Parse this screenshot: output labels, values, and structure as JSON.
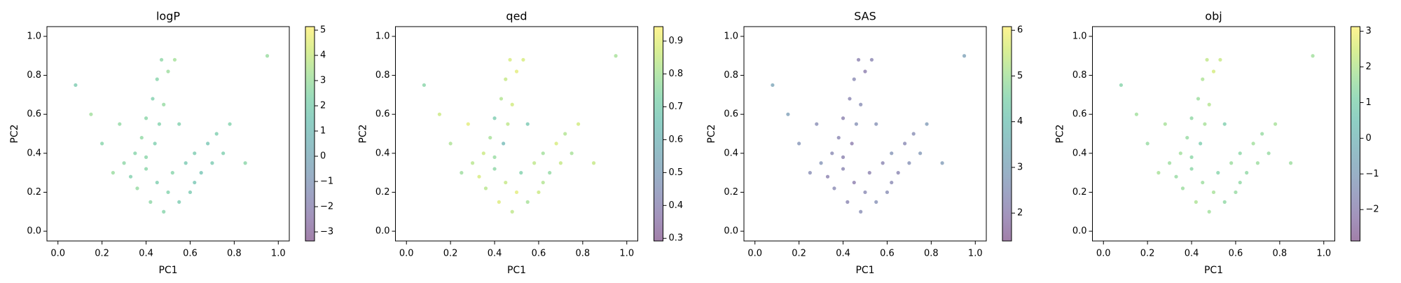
{
  "chart_data": [
    {
      "type": "scatter",
      "title": "logP",
      "x_label": "PC1",
      "y_label": "PC2",
      "xlim": [
        -0.05,
        1.05
      ],
      "ylim": [
        -0.05,
        1.05
      ],
      "xticks": [
        {
          "value": 0,
          "label": "0.0"
        },
        0.2,
        0.4,
        0.6,
        0.8,
        {
          "value": 1,
          "label": "1.0"
        }
      ],
      "yticks": [
        {
          "value": 0,
          "label": "0.0"
        },
        0.2,
        0.4,
        0.6,
        0.8,
        {
          "value": 1,
          "label": "1.0"
        }
      ],
      "clim": [
        -3.36,
        5.14
      ],
      "cticks": [
        {
          "value": -3,
          "label": "−3"
        },
        {
          "value": -2,
          "label": "−2"
        },
        {
          "value": -1,
          "label": "−1"
        },
        0,
        1,
        2,
        3,
        4,
        5
      ],
      "colormap": [
        "#440154",
        "#482878",
        "#3e4989",
        "#31688e",
        "#26828e",
        "#1f9e89",
        "#35b779",
        "#6ece58",
        "#b5de2b",
        "#fde725"
      ],
      "alpha": 0.5,
      "x": [
        0.47,
        0.45,
        0.5,
        0.43,
        0.48,
        0.4,
        0.46,
        0.38,
        0.44,
        0.35,
        0.3,
        0.25,
        0.33,
        0.4,
        0.45,
        0.5,
        0.55,
        0.6,
        0.52,
        0.58,
        0.62,
        0.68,
        0.72,
        0.65,
        0.7,
        0.75,
        0.78,
        0.42,
        0.36,
        0.2,
        0.15,
        0.08,
        0.28,
        0.55,
        0.85,
        0.95,
        0.53,
        0.48,
        0.62,
        0.4
      ],
      "y": [
        0.88,
        0.78,
        0.82,
        0.68,
        0.65,
        0.58,
        0.55,
        0.48,
        0.45,
        0.4,
        0.35,
        0.3,
        0.28,
        0.32,
        0.25,
        0.2,
        0.15,
        0.2,
        0.3,
        0.35,
        0.4,
        0.45,
        0.5,
        0.3,
        0.35,
        0.4,
        0.55,
        0.15,
        0.22,
        0.45,
        0.6,
        0.75,
        0.55,
        0.55,
        0.35,
        0.9,
        0.88,
        0.1,
        0.25,
        0.38
      ],
      "c": [
        2.6,
        2.4,
        3.0,
        2.2,
        2.8,
        2.5,
        2.3,
        2.7,
        2.1,
        2.4,
        2.6,
        2.9,
        2.2,
        2.5,
        2.0,
        2.3,
        1.9,
        1.8,
        2.4,
        1.7,
        1.9,
        1.6,
        2.0,
        1.5,
        1.8,
        2.1,
        2.3,
        2.6,
        2.8,
        2.4,
        3.1,
        1.9,
        2.7,
        2.2,
        2.5,
        2.9,
        3.2,
        2.4,
        1.6,
        2.5
      ]
    },
    {
      "type": "scatter",
      "title": "qed",
      "x_label": "PC1",
      "y_label": "PC2",
      "xlim": [
        -0.05,
        1.05
      ],
      "ylim": [
        -0.05,
        1.05
      ],
      "xticks": [
        {
          "value": 0,
          "label": "0.0"
        },
        0.2,
        0.4,
        0.6,
        0.8,
        {
          "value": 1,
          "label": "1.0"
        }
      ],
      "yticks": [
        {
          "value": 0,
          "label": "0.0"
        },
        0.2,
        0.4,
        0.6,
        0.8,
        {
          "value": 1,
          "label": "1.0"
        }
      ],
      "clim": [
        0.292,
        0.944
      ],
      "cticks": [
        0.3,
        0.4,
        0.5,
        0.6,
        0.7,
        0.8,
        0.9
      ],
      "colormap": [
        "#440154",
        "#482878",
        "#3e4989",
        "#31688e",
        "#26828e",
        "#1f9e89",
        "#35b779",
        "#6ece58",
        "#b5de2b",
        "#fde725"
      ],
      "alpha": 0.5,
      "x": [
        0.47,
        0.45,
        0.5,
        0.43,
        0.48,
        0.4,
        0.46,
        0.38,
        0.44,
        0.35,
        0.3,
        0.25,
        0.33,
        0.4,
        0.45,
        0.5,
        0.55,
        0.6,
        0.52,
        0.58,
        0.62,
        0.68,
        0.72,
        0.65,
        0.7,
        0.75,
        0.78,
        0.42,
        0.36,
        0.2,
        0.15,
        0.08,
        0.28,
        0.55,
        0.85,
        0.95,
        0.53,
        0.48,
        0.62,
        0.4
      ],
      "y": [
        0.88,
        0.78,
        0.82,
        0.68,
        0.65,
        0.58,
        0.55,
        0.48,
        0.45,
        0.4,
        0.35,
        0.3,
        0.28,
        0.32,
        0.25,
        0.2,
        0.15,
        0.2,
        0.3,
        0.35,
        0.4,
        0.45,
        0.5,
        0.3,
        0.35,
        0.4,
        0.55,
        0.15,
        0.22,
        0.45,
        0.6,
        0.75,
        0.55,
        0.55,
        0.35,
        0.9,
        0.88,
        0.1,
        0.25,
        0.38
      ],
      "c": [
        0.88,
        0.85,
        0.9,
        0.82,
        0.87,
        0.7,
        0.84,
        0.8,
        0.62,
        0.86,
        0.83,
        0.78,
        0.88,
        0.75,
        0.85,
        0.9,
        0.8,
        0.86,
        0.72,
        0.84,
        0.79,
        0.88,
        0.82,
        0.76,
        0.85,
        0.8,
        0.87,
        0.89,
        0.83,
        0.81,
        0.86,
        0.74,
        0.9,
        0.68,
        0.85,
        0.8,
        0.88,
        0.84,
        0.82,
        0.77
      ]
    },
    {
      "type": "scatter",
      "title": "SAS",
      "x_label": "PC1",
      "y_label": "PC2",
      "xlim": [
        -0.05,
        1.05
      ],
      "ylim": [
        -0.05,
        1.05
      ],
      "xticks": [
        {
          "value": 0,
          "label": "0.0"
        },
        0.2,
        0.4,
        0.6,
        0.8,
        {
          "value": 1,
          "label": "1.0"
        }
      ],
      "yticks": [
        {
          "value": 0,
          "label": "0.0"
        },
        0.2,
        0.4,
        0.6,
        0.8,
        {
          "value": 1,
          "label": "1.0"
        }
      ],
      "clim": [
        1.39,
        6.08
      ],
      "cticks": [
        2,
        3,
        4,
        5,
        6
      ],
      "colormap": [
        "#440154",
        "#482878",
        "#3e4989",
        "#31688e",
        "#26828e",
        "#1f9e89",
        "#35b779",
        "#6ece58",
        "#b5de2b",
        "#fde725"
      ],
      "alpha": 0.5,
      "x": [
        0.47,
        0.45,
        0.5,
        0.43,
        0.48,
        0.4,
        0.46,
        0.38,
        0.44,
        0.35,
        0.3,
        0.25,
        0.33,
        0.4,
        0.45,
        0.5,
        0.55,
        0.6,
        0.52,
        0.58,
        0.62,
        0.68,
        0.72,
        0.65,
        0.7,
        0.75,
        0.78,
        0.42,
        0.36,
        0.2,
        0.15,
        0.08,
        0.28,
        0.55,
        0.85,
        0.95,
        0.53,
        0.48,
        0.62,
        0.4
      ],
      "y": [
        0.88,
        0.78,
        0.82,
        0.68,
        0.65,
        0.58,
        0.55,
        0.48,
        0.45,
        0.4,
        0.35,
        0.3,
        0.28,
        0.32,
        0.25,
        0.2,
        0.15,
        0.2,
        0.3,
        0.35,
        0.4,
        0.45,
        0.5,
        0.3,
        0.35,
        0.4,
        0.55,
        0.15,
        0.22,
        0.45,
        0.6,
        0.75,
        0.55,
        0.55,
        0.35,
        0.9,
        0.88,
        0.1,
        0.25,
        0.38
      ],
      "c": [
        2.1,
        2.3,
        2.0,
        2.2,
        2.4,
        2.1,
        2.5,
        2.2,
        2.0,
        2.3,
        2.6,
        2.4,
        2.1,
        2.2,
        2.0,
        2.3,
        2.5,
        2.4,
        2.1,
        2.2,
        2.6,
        2.3,
        2.4,
        2.2,
        2.5,
        2.7,
        2.8,
        2.2,
        2.3,
        2.6,
        2.9,
        3.1,
        2.4,
        2.5,
        2.8,
        3.0,
        2.2,
        2.4,
        2.3,
        2.1
      ]
    },
    {
      "type": "scatter",
      "title": "obj",
      "x_label": "PC1",
      "y_label": "PC2",
      "xlim": [
        -0.05,
        1.05
      ],
      "ylim": [
        -0.05,
        1.05
      ],
      "xticks": [
        {
          "value": 0,
          "label": "0.0"
        },
        0.2,
        0.4,
        0.6,
        0.8,
        {
          "value": 1,
          "label": "1.0"
        }
      ],
      "yticks": [
        {
          "value": 0,
          "label": "0.0"
        },
        0.2,
        0.4,
        0.6,
        0.8,
        {
          "value": 1,
          "label": "1.0"
        }
      ],
      "clim": [
        -2.88,
        3.13
      ],
      "cticks": [
        {
          "value": -2,
          "label": "−2"
        },
        {
          "value": -1,
          "label": "−1"
        },
        0,
        1,
        2,
        3
      ],
      "colormap": [
        "#440154",
        "#482878",
        "#3e4989",
        "#31688e",
        "#26828e",
        "#1f9e89",
        "#35b779",
        "#6ece58",
        "#b5de2b",
        "#fde725"
      ],
      "alpha": 0.5,
      "x": [
        0.47,
        0.45,
        0.5,
        0.43,
        0.48,
        0.4,
        0.46,
        0.38,
        0.44,
        0.35,
        0.3,
        0.25,
        0.33,
        0.4,
        0.45,
        0.5,
        0.55,
        0.6,
        0.52,
        0.58,
        0.62,
        0.68,
        0.72,
        0.65,
        0.7,
        0.75,
        0.78,
        0.42,
        0.36,
        0.2,
        0.15,
        0.08,
        0.28,
        0.55,
        0.85,
        0.95,
        0.53,
        0.48,
        0.62,
        0.4
      ],
      "y": [
        0.88,
        0.78,
        0.82,
        0.68,
        0.65,
        0.58,
        0.55,
        0.48,
        0.45,
        0.4,
        0.35,
        0.3,
        0.28,
        0.32,
        0.25,
        0.2,
        0.15,
        0.2,
        0.3,
        0.35,
        0.4,
        0.45,
        0.5,
        0.3,
        0.35,
        0.4,
        0.55,
        0.15,
        0.22,
        0.45,
        0.6,
        0.75,
        0.55,
        0.55,
        0.35,
        0.9,
        0.88,
        0.1,
        0.25,
        0.38
      ],
      "c": [
        2.2,
        1.9,
        2.5,
        1.6,
        2.0,
        1.4,
        1.8,
        1.5,
        0.9,
        1.7,
        1.6,
        1.8,
        1.5,
        1.3,
        1.6,
        1.8,
        1.4,
        1.5,
        1.2,
        1.6,
        1.3,
        1.7,
        1.5,
        1.4,
        1.6,
        1.5,
        1.8,
        1.9,
        1.6,
        1.5,
        1.7,
        1.2,
        1.8,
        1.0,
        1.6,
        1.7,
        2.3,
        1.7,
        1.4,
        1.3
      ]
    }
  ]
}
